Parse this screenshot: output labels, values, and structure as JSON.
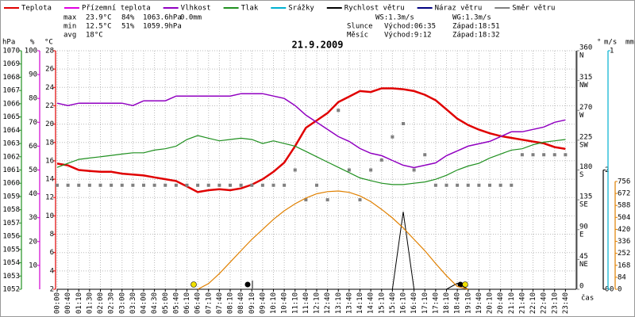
{
  "chart_data": {
    "type": "line",
    "title": "21.9.2009",
    "x_label": "čas",
    "stats": [
      [
        "max",
        "23.9°C",
        "84%",
        "1063.6hPa",
        "0.0mm"
      ],
      [
        "min",
        "12.5°C",
        "51%",
        "1059.9hPa"
      ],
      [
        "avg",
        "18°C"
      ]
    ],
    "stats_colors": [
      "#000000",
      "#e00000",
      "#c000c0",
      "#2060c0",
      "#00a0c0"
    ],
    "info": [
      [
        "WS:1.3m/s",
        "WG:1.3m/s"
      ],
      [
        "Slunce",
        "Východ:06:35",
        "Západ:18:51"
      ],
      [
        "Měsíc",
        "Východ:9:12",
        "Západ:18:32"
      ]
    ],
    "categories": [
      "00:00",
      "00:40",
      "01:10",
      "01:30",
      "02:00",
      "02:30",
      "03:00",
      "03:30",
      "04:00",
      "04:30",
      "05:00",
      "05:40",
      "06:10",
      "06:40",
      "07:10",
      "07:40",
      "08:10",
      "08:40",
      "09:10",
      "09:40",
      "10:10",
      "10:40",
      "11:10",
      "11:40",
      "12:10",
      "12:40",
      "13:10",
      "13:40",
      "14:10",
      "14:40",
      "15:10",
      "15:40",
      "16:10",
      "16:40",
      "17:10",
      "17:40",
      "18:10",
      "18:40",
      "19:10",
      "19:40",
      "20:10",
      "20:40",
      "21:10",
      "21:40",
      "22:10",
      "22:40",
      "23:10",
      "23:40"
    ],
    "grid": true,
    "axes": {
      "hpa": {
        "label": "hPa",
        "color": "#209020",
        "side": "left",
        "lim": [
          1052,
          1070
        ],
        "ticks": [
          1052,
          1053,
          1054,
          1055,
          1056,
          1057,
          1058,
          1059,
          1060,
          1061,
          1062,
          1063,
          1064,
          1065,
          1066,
          1067,
          1068,
          1069,
          1070
        ]
      },
      "pct": {
        "label": "%",
        "color": "#d000d0",
        "side": "left",
        "lim": [
          0,
          100
        ],
        "ticks": [
          10,
          20,
          30,
          40,
          50,
          60,
          70,
          80,
          90,
          100
        ]
      },
      "temp": {
        "label": "°C",
        "color": "#e00000",
        "side": "left",
        "lim": [
          2,
          28
        ],
        "ticks": [
          2,
          4,
          6,
          8,
          10,
          12,
          14,
          16,
          18,
          20,
          22,
          24,
          26,
          28
        ]
      },
      "dir": {
        "label": "°",
        "color": "#808080",
        "side": "right",
        "lim": [
          0,
          360
        ],
        "ticks": [
          0,
          45,
          90,
          135,
          180,
          225,
          270,
          315,
          360
        ],
        "compass": [
          null,
          "NE",
          "E",
          "SE",
          "S",
          "SW",
          "W",
          "NW",
          "N"
        ]
      },
      "ms": {
        "label": "m/s",
        "color": "#000000",
        "side": "right",
        "lim": [
          0,
          4
        ],
        "ticks": [
          0,
          2
        ]
      },
      "mm": {
        "label": "mm",
        "color": "#00b0d0",
        "side": "right",
        "lim": [
          0,
          1
        ],
        "ticks": [
          0,
          1
        ]
      },
      "rad": {
        "color": "#e08000",
        "side": "right",
        "lim": [
          0,
          1673
        ],
        "ticks": [
          0,
          84,
          168,
          252,
          336,
          420,
          504,
          588,
          672,
          756
        ]
      }
    },
    "series": [
      {
        "name": "Teplota",
        "color": "#e00000",
        "axis": "temp",
        "width": 2.5,
        "values": [
          15.7,
          15.5,
          15.0,
          14.9,
          14.8,
          14.8,
          14.6,
          14.5,
          14.4,
          14.2,
          14.0,
          13.8,
          13.2,
          12.6,
          12.8,
          12.9,
          12.8,
          13.0,
          13.4,
          14.0,
          14.8,
          15.8,
          17.6,
          19.6,
          20.4,
          21.2,
          22.4,
          23.0,
          23.6,
          23.5,
          23.9,
          23.9,
          23.8,
          23.6,
          23.2,
          22.6,
          21.6,
          20.6,
          19.9,
          19.4,
          19.0,
          18.7,
          18.5,
          18.3,
          18.1,
          17.9,
          17.5,
          17.3
        ]
      },
      {
        "name": "Přízemní teplota",
        "color": "#e000e0"
      },
      {
        "name": "Vlhkost",
        "color": "#9000c0",
        "axis": "pct",
        "width": 1.5,
        "values": [
          78,
          77,
          78,
          78,
          78,
          78,
          78,
          77,
          79,
          79,
          79,
          81,
          81,
          81,
          81,
          81,
          81,
          82,
          82,
          82,
          81,
          80,
          77,
          73,
          70,
          67,
          64,
          62,
          59,
          57,
          56,
          54,
          52,
          51,
          52,
          53,
          56,
          58,
          60,
          61,
          62,
          64,
          66,
          66,
          67,
          68,
          70,
          71
        ]
      },
      {
        "name": "Tlak",
        "color": "#209020",
        "axis": "hpa",
        "width": 1.2,
        "values": [
          1061.2,
          1061.5,
          1061.8,
          1061.9,
          1062.0,
          1062.1,
          1062.2,
          1062.3,
          1062.3,
          1062.5,
          1062.6,
          1062.8,
          1063.3,
          1063.6,
          1063.4,
          1063.2,
          1063.3,
          1063.4,
          1063.3,
          1063.0,
          1063.2,
          1063.0,
          1062.8,
          1062.4,
          1062.0,
          1061.6,
          1061.2,
          1060.8,
          1060.4,
          1060.2,
          1060.0,
          1059.9,
          1059.9,
          1060.0,
          1060.1,
          1060.3,
          1060.6,
          1061.0,
          1061.3,
          1061.5,
          1061.9,
          1062.2,
          1062.5,
          1062.6,
          1062.9,
          1063.1,
          1063.2,
          1063.3
        ]
      },
      {
        "name": "Srážky",
        "color": "#00b0d0"
      },
      {
        "name": "Rychlost větru",
        "color": "#000000",
        "axis": "ms",
        "width": 1,
        "values": [
          0,
          0,
          0,
          0,
          0,
          0,
          0,
          0,
          0,
          0,
          0,
          0,
          0,
          0,
          0,
          0,
          0,
          0,
          0,
          0,
          0,
          0,
          0,
          0,
          0,
          0,
          0,
          0,
          0,
          0,
          0,
          0,
          1.3,
          0,
          0,
          0,
          0,
          0.1,
          0,
          0,
          0,
          0,
          0,
          0,
          0,
          0,
          0,
          0
        ]
      },
      {
        "name": "Náraz větru",
        "color": "#000080"
      },
      {
        "name": "Směr větru",
        "color": "#808080",
        "axis": "dir",
        "style": "points",
        "values": [
          157,
          157,
          157,
          157,
          157,
          157,
          157,
          157,
          157,
          157,
          157,
          157,
          157,
          157,
          157,
          157,
          157,
          157,
          157,
          157,
          157,
          157,
          180,
          135,
          157,
          135,
          270,
          180,
          135,
          180,
          195,
          230,
          250,
          180,
          203,
          157,
          157,
          157,
          157,
          157,
          157,
          157,
          157,
          203,
          203,
          203,
          203,
          203
        ]
      },
      {
        "color": "#e08000",
        "axis": "rad",
        "width": 1.2,
        "legend": false,
        "values": [
          null,
          null,
          null,
          null,
          null,
          null,
          null,
          null,
          null,
          null,
          null,
          null,
          null,
          0,
          40,
          110,
          190,
          270,
          350,
          420,
          490,
          550,
          600,
          640,
          670,
          685,
          689,
          680,
          655,
          615,
          560,
          500,
          430,
          350,
          270,
          180,
          95,
          20,
          0,
          null,
          null,
          null,
          null,
          null,
          null,
          null,
          null,
          null
        ]
      }
    ]
  }
}
